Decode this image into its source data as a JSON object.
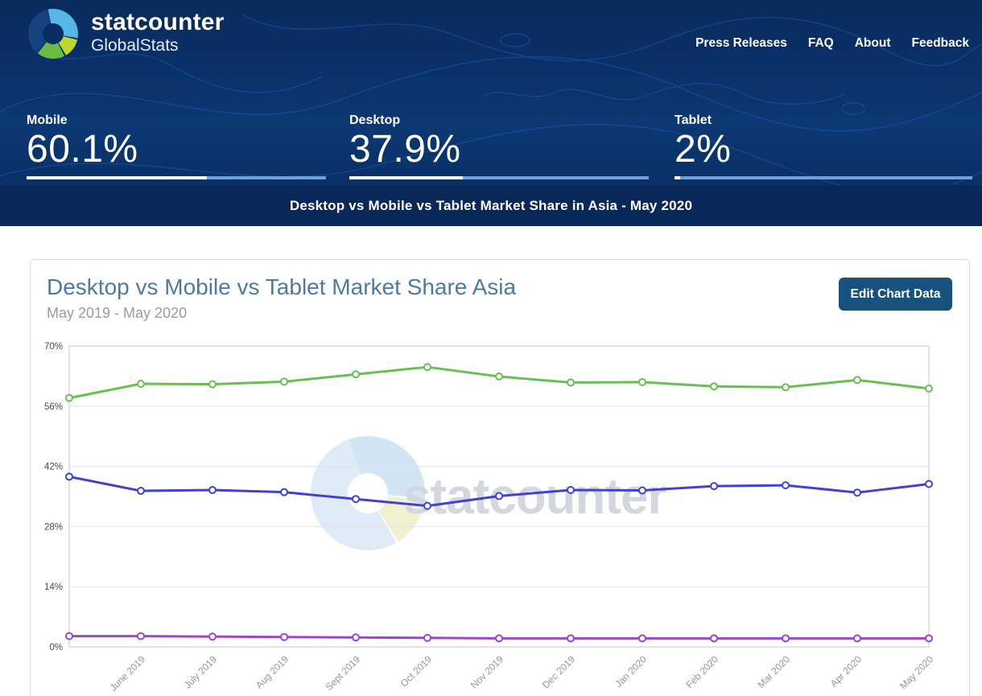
{
  "header": {
    "brand": {
      "name": "statcounter",
      "sub": "GlobalStats"
    },
    "nav": {
      "items": [
        {
          "label": "Press Releases"
        },
        {
          "label": "FAQ"
        },
        {
          "label": "About"
        },
        {
          "label": "Feedback"
        }
      ]
    },
    "stats": {
      "items": [
        {
          "label": "Mobile",
          "value": "60.1%",
          "pct": 60.1
        },
        {
          "label": "Desktop",
          "value": "37.9%",
          "pct": 37.9
        },
        {
          "label": "Tablet",
          "value": "2%",
          "pct": 2
        }
      ]
    },
    "banner_title": "Desktop vs Mobile vs Tablet Market Share in Asia - May 2020"
  },
  "card": {
    "title": "Desktop vs Mobile vs Tablet Market Share Asia",
    "subtitle": "May 2019 - May 2020",
    "edit_button_label": "Edit Chart Data"
  },
  "watermark": {
    "text": "statcounter"
  },
  "colors": {
    "header_navy": "#0b356f",
    "banner_navy": "#08285a",
    "bar_track_blue": "#6f9ed8",
    "button_blue": "#17517e",
    "card_title_blue": "#4e7aa2",
    "logo_lightblue": "#55b7e8",
    "logo_lime": "#bed731",
    "logo_green": "#6cbb45"
  },
  "chart_data": {
    "type": "line",
    "title": "Desktop vs Mobile vs Tablet Market Share Asia",
    "subtitle": "May 2019 - May 2020",
    "categories": [
      "May 2019",
      "June 2019",
      "July 2019",
      "Aug 2019",
      "Sept 2019",
      "Oct 2019",
      "Nov 2019",
      "Dec 2019",
      "Jan 2020",
      "Feb 2020",
      "Mar 2020",
      "Apr 2020",
      "May 2020"
    ],
    "tick_labels": [
      "",
      "June 2019",
      "July 2019",
      "Aug 2019",
      "Sept 2019",
      "Oct 2019",
      "Nov 2019",
      "Dec 2019",
      "Jan 2020",
      "Feb 2020",
      "Mar 2020",
      "Apr 2020",
      "May 2020"
    ],
    "series": [
      {
        "name": "Mobile",
        "color": "#68bf53",
        "values": [
          57.9,
          61.2,
          61.1,
          61.7,
          63.4,
          65.1,
          62.9,
          61.5,
          61.6,
          60.6,
          60.4,
          62.1,
          60.1
        ]
      },
      {
        "name": "Desktop",
        "color": "#4142cf",
        "values": [
          39.6,
          36.3,
          36.5,
          36.0,
          34.4,
          32.8,
          35.1,
          36.5,
          36.4,
          37.4,
          37.6,
          35.9,
          37.9
        ]
      },
      {
        "name": "Tablet",
        "color": "#9b47cc",
        "values": [
          2.5,
          2.5,
          2.4,
          2.3,
          2.2,
          2.1,
          2.0,
          2.0,
          2.0,
          2.0,
          2.0,
          2.0,
          2.0
        ]
      }
    ],
    "ylim": [
      0,
      70
    ],
    "yticks": [
      0,
      14,
      28,
      42,
      56,
      70
    ],
    "ytick_suffix": "%",
    "grid": "horizontal",
    "legend": "none",
    "marker": "open-circle"
  }
}
